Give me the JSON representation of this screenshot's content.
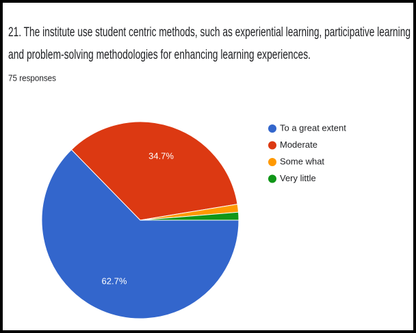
{
  "chart_data": {
    "type": "pie",
    "title": [
      "21. The institute use student centric methods, such as experiential learning, participative learning",
      "and problem-solving methodologies for enhancing learning experiences."
    ],
    "subtitle": "75 responses",
    "categories": [
      "To a great extent",
      "Moderate",
      "Some what",
      "Very little"
    ],
    "values": [
      62.7,
      34.7,
      1.3,
      1.3
    ],
    "value_labels": [
      "62.7%",
      "34.7%",
      null,
      null
    ],
    "colors": [
      "#3366cc",
      "#dc3912",
      "#ff9900",
      "#109618"
    ],
    "legend": "right"
  }
}
